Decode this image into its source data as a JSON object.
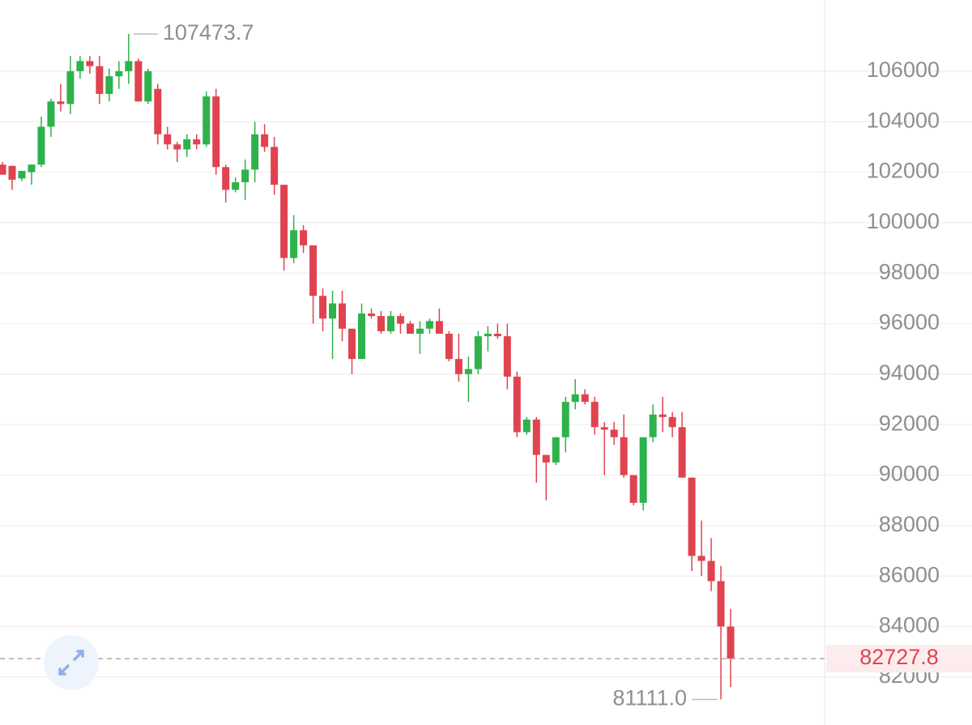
{
  "chart_data": {
    "type": "candlestick",
    "up_color": "#2eb24b",
    "down_color": "#e04350",
    "ylim": [
      80100,
      108820
    ],
    "yticks": [
      82000,
      84000,
      86000,
      88000,
      90000,
      92000,
      94000,
      96000,
      98000,
      100000,
      102000,
      104000,
      106000
    ],
    "grid": true,
    "open": [
      102300,
      102250,
      101750,
      102000,
      102300,
      103800,
      104800,
      104700,
      106000,
      106400,
      106200,
      105100,
      105800,
      106000,
      106400,
      104800,
      105300,
      103500,
      103100,
      102900,
      103300,
      103100,
      105000,
      102200,
      101300,
      101600,
      102100,
      103500,
      103000,
      101500,
      98600,
      99700,
      99100,
      97100,
      96200,
      96800,
      95800,
      94600,
      96400,
      96300,
      95700,
      96300,
      96000,
      95600,
      95800,
      96100,
      95600,
      94600,
      94000,
      94200,
      95500,
      95600,
      95500,
      93900,
      91700,
      92200,
      90800,
      90500,
      91500,
      92900,
      93200,
      92900,
      91900,
      91800,
      91500,
      90000,
      88900,
      91500,
      92400,
      92300,
      91900,
      89900,
      86800,
      86600,
      85800,
      84000
    ],
    "high": [
      102400,
      102250,
      102050,
      102300,
      104200,
      104900,
      105500,
      106600,
      106600,
      106600,
      106600,
      106100,
      106400,
      107473.7,
      106500,
      106100,
      105500,
      103800,
      103200,
      103500,
      103500,
      105200,
      105300,
      102300,
      101800,
      102500,
      104000,
      103900,
      103400,
      101500,
      100300,
      99900,
      99100,
      97400,
      97300,
      97300,
      95800,
      96800,
      96600,
      96500,
      96500,
      96400,
      96100,
      96100,
      96200,
      96600,
      95700,
      95600,
      94700,
      95700,
      95900,
      96000,
      96000,
      94100,
      92300,
      92300,
      90800,
      91500,
      93100,
      93800,
      93400,
      93100,
      92100,
      92100,
      92400,
      90000,
      91500,
      92800,
      93100,
      92500,
      92500,
      89900,
      88200,
      87500,
      86400,
      84700
    ],
    "low": [
      101900,
      101300,
      101650,
      101500,
      102200,
      103400,
      104400,
      104300,
      105700,
      105900,
      104700,
      104800,
      105300,
      105500,
      104800,
      104700,
      103100,
      102900,
      102400,
      102600,
      102900,
      103000,
      101900,
      100800,
      101200,
      100900,
      101600,
      102800,
      101100,
      98100,
      98400,
      98800,
      96000,
      95700,
      94600,
      95300,
      94000,
      94600,
      96200,
      95600,
      95600,
      95600,
      95600,
      94800,
      95600,
      95600,
      94500,
      93700,
      92900,
      94000,
      94900,
      95400,
      93400,
      91500,
      91600,
      89700,
      89000,
      90400,
      90900,
      92600,
      92800,
      91600,
      90000,
      91200,
      89900,
      88800,
      88600,
      91300,
      91700,
      91500,
      89900,
      86200,
      86000,
      85400,
      81111.0,
      81600
    ],
    "close": [
      101900,
      101700,
      102050,
      102300,
      103800,
      104800,
      104700,
      106000,
      106400,
      106200,
      105100,
      105800,
      106000,
      106400,
      104800,
      106000,
      103500,
      103100,
      102900,
      103300,
      103100,
      105000,
      102200,
      101300,
      101600,
      102100,
      103500,
      103000,
      101500,
      98600,
      99700,
      99100,
      97100,
      96200,
      96800,
      95800,
      94600,
      96400,
      96300,
      95700,
      96300,
      96000,
      95600,
      95800,
      96100,
      95600,
      94600,
      94000,
      94200,
      95500,
      95600,
      95500,
      93900,
      91700,
      92200,
      90800,
      90500,
      91500,
      92900,
      93200,
      92900,
      91900,
      91800,
      91500,
      90000,
      88900,
      91500,
      92400,
      92300,
      91900,
      89900,
      86800,
      86600,
      85800,
      84000,
      82727.8
    ],
    "annotations": [
      {
        "value": 107473.7,
        "label": "107473.7"
      },
      {
        "value": 81111.0,
        "label": "81111.0"
      },
      {
        "value": 82727.8,
        "label": "82727.8"
      }
    ]
  }
}
